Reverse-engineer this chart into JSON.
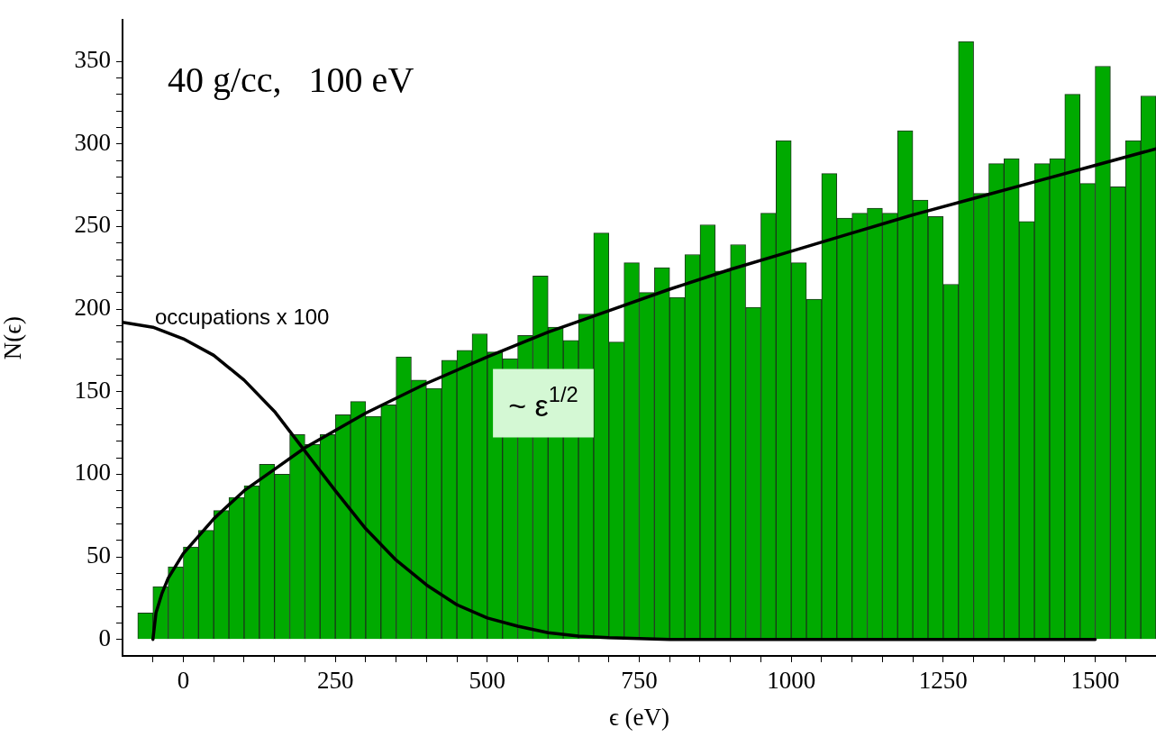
{
  "chart_data": {
    "type": "histogram",
    "title": "40 g/cc,   100 eV",
    "xlabel": "ϵ (eV)",
    "ylabel": "N(ϵ)",
    "color": "#00aa00",
    "bins": [
      -75,
      -50,
      -25,
      0,
      25,
      50,
      75,
      100,
      125,
      150,
      175,
      200,
      225,
      250,
      275,
      300,
      325,
      350,
      375,
      400,
      425,
      450,
      475,
      500,
      525,
      550,
      575,
      600,
      625,
      650,
      675,
      700,
      725,
      750,
      775,
      800,
      825,
      850,
      875,
      900,
      925,
      950,
      975,
      1000,
      1025,
      1050,
      1075,
      1100,
      1125,
      1150,
      1175,
      1200,
      1225,
      1250,
      1275,
      1300,
      1325,
      1350,
      1375,
      1400,
      1425,
      1450,
      1475,
      1500,
      1525,
      1550,
      1575,
      1600
    ],
    "values": [
      16,
      32,
      44,
      56,
      66,
      78,
      86,
      93,
      106,
      100,
      124,
      118,
      124,
      136,
      144,
      135,
      142,
      171,
      157,
      152,
      169,
      175,
      185,
      174,
      170,
      184,
      220,
      189,
      181,
      197,
      246,
      180,
      228,
      210,
      225,
      207,
      233,
      251,
      223,
      239,
      201,
      258,
      302,
      228,
      206,
      282,
      255,
      258,
      261,
      258,
      308,
      266,
      256,
      215,
      362,
      270,
      288,
      291,
      253,
      288,
      291,
      330,
      276,
      347,
      274,
      302,
      329
    ],
    "series": [
      {
        "type": "line",
        "color": "#000000",
        "x": [
          -50,
          -45,
          -35,
          -25,
          0,
          50,
          100,
          150,
          200,
          300,
          400,
          500,
          600,
          700,
          800,
          900,
          1000,
          1100,
          1200,
          1300,
          1400,
          1500,
          1600
        ],
        "values": [
          0,
          16,
          28,
          37,
          52,
          73,
          90,
          103,
          116,
          137,
          155,
          171,
          186,
          199,
          212,
          224,
          235,
          246,
          257,
          267,
          277,
          287,
          297
        ]
      },
      {
        "type": "line",
        "color": "#000000",
        "x": [
          -100,
          -50,
          0,
          50,
          100,
          150,
          200,
          250,
          300,
          350,
          400,
          450,
          500,
          550,
          600,
          650,
          700,
          800,
          1500
        ],
        "values": [
          192,
          189,
          182,
          172,
          157,
          138,
          114,
          90,
          67,
          48,
          33,
          21,
          13,
          8,
          4,
          2,
          1,
          0,
          0
        ]
      }
    ],
    "xlim": [
      -100,
      1600
    ],
    "xticks": [
      {
        "value": -50,
        "label": null
      },
      0,
      {
        "value": 50,
        "label": null
      },
      {
        "value": 100,
        "label": null
      },
      {
        "value": 150,
        "label": null
      },
      {
        "value": 200,
        "label": null
      },
      250,
      {
        "value": 300,
        "label": null
      },
      {
        "value": 350,
        "label": null
      },
      {
        "value": 400,
        "label": null
      },
      {
        "value": 450,
        "label": null
      },
      500,
      {
        "value": 550,
        "label": null
      },
      {
        "value": 600,
        "label": null
      },
      {
        "value": 650,
        "label": null
      },
      {
        "value": 700,
        "label": null
      },
      750,
      {
        "value": 800,
        "label": null
      },
      {
        "value": 850,
        "label": null
      },
      {
        "value": 900,
        "label": null
      },
      {
        "value": 950,
        "label": null
      },
      1000,
      {
        "value": 1050,
        "label": null
      },
      {
        "value": 1100,
        "label": null
      },
      {
        "value": 1150,
        "label": null
      },
      {
        "value": 1200,
        "label": null
      },
      1250,
      {
        "value": 1300,
        "label": null
      },
      {
        "value": 1350,
        "label": null
      },
      {
        "value": 1400,
        "label": null
      },
      {
        "value": 1450,
        "label": null
      },
      1500,
      {
        "value": 1550,
        "label": null
      }
    ],
    "ylim": [
      -10,
      375
    ],
    "yticks": [
      0,
      {
        "value": 10,
        "label": null
      },
      {
        "value": 20,
        "label": null
      },
      {
        "value": 30,
        "label": null
      },
      {
        "value": 40,
        "label": null
      },
      50,
      {
        "value": 60,
        "label": null
      },
      {
        "value": 70,
        "label": null
      },
      {
        "value": 80,
        "label": null
      },
      {
        "value": 90,
        "label": null
      },
      100,
      {
        "value": 110,
        "label": null
      },
      {
        "value": 120,
        "label": null
      },
      {
        "value": 130,
        "label": null
      },
      {
        "value": 140,
        "label": null
      },
      150,
      {
        "value": 160,
        "label": null
      },
      {
        "value": 170,
        "label": null
      },
      {
        "value": 180,
        "label": null
      },
      {
        "value": 190,
        "label": null
      },
      200,
      {
        "value": 210,
        "label": null
      },
      {
        "value": 220,
        "label": null
      },
      {
        "value": 230,
        "label": null
      },
      {
        "value": 240,
        "label": null
      },
      250,
      {
        "value": 260,
        "label": null
      },
      {
        "value": 270,
        "label": null
      },
      {
        "value": 280,
        "label": null
      },
      {
        "value": 290,
        "label": null
      },
      300,
      {
        "value": 310,
        "label": null
      },
      {
        "value": 320,
        "label": null
      },
      {
        "value": 330,
        "label": null
      },
      {
        "value": 340,
        "label": null
      },
      350
    ],
    "annotations": [
      "occupations x 100",
      {
        "text": "~ ε$^{1/2}$",
        "x": 601,
        "y": 143
      }
    ],
    "grid": false,
    "legend": false,
    "marker": "none",
    "line_style": "solid"
  }
}
